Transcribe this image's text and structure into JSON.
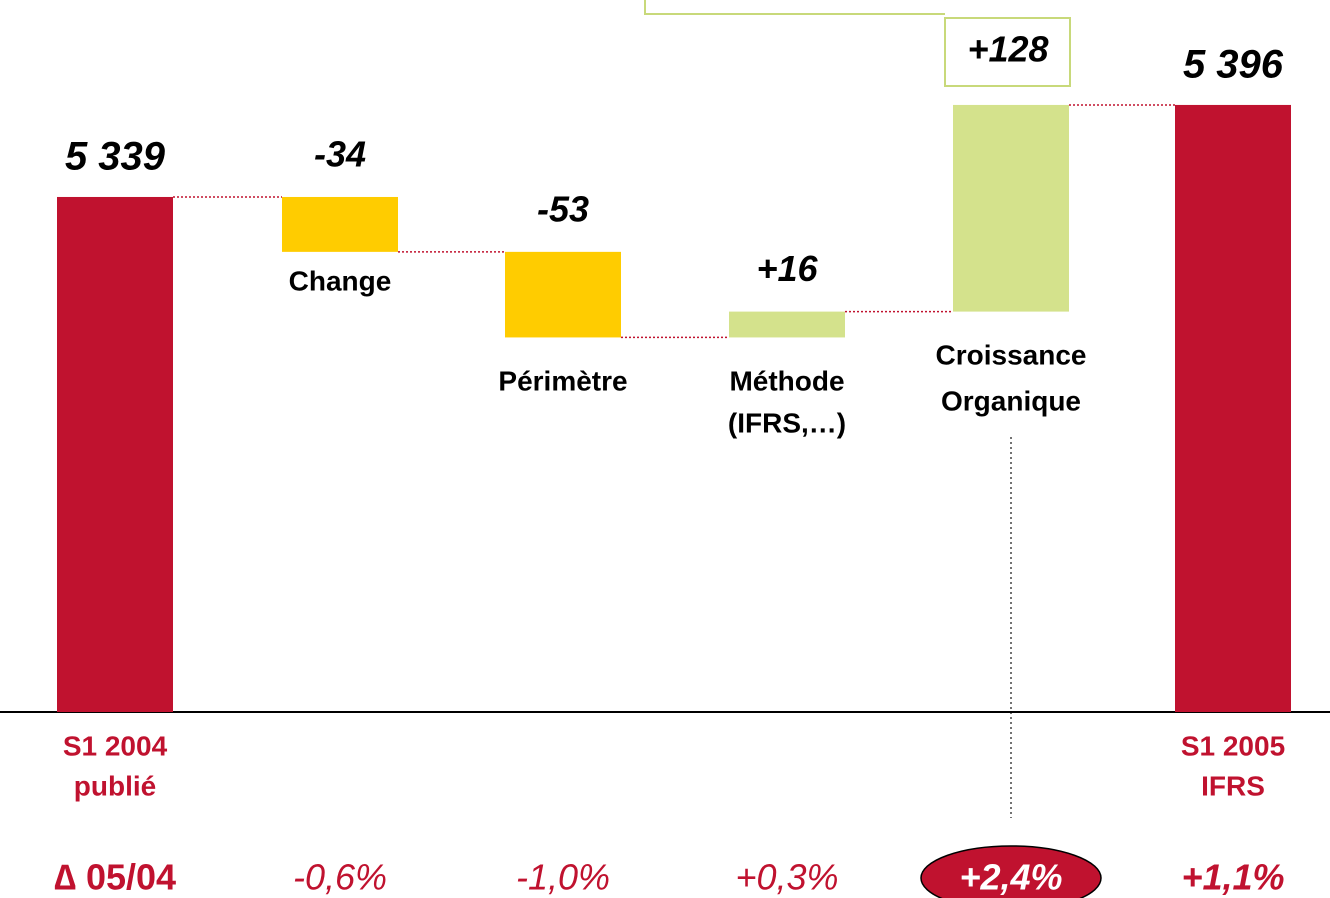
{
  "chart_data": {
    "type": "waterfall",
    "categories": [
      [
        "S1 2004",
        "publié"
      ],
      [
        "Change"
      ],
      [
        "Périmètre"
      ],
      [
        "Méthode",
        "(IFRS,…)"
      ],
      [
        "Croissance",
        "Organique"
      ],
      [
        "S1 2005",
        "IFRS"
      ]
    ],
    "values": [
      5339,
      -34,
      -53,
      16,
      128,
      5396
    ],
    "value_labels": [
      "5 339",
      "-34",
      "-53",
      "+16",
      "+128",
      "5 396"
    ],
    "totals": [
      true,
      false,
      false,
      false,
      false,
      true
    ],
    "colors": [
      "#c0122f",
      "#ffcc00",
      "#ffcc00",
      "#d4e28c",
      "#d4e28c",
      "#c0122f"
    ],
    "ylim": [
      5020,
      5461
    ],
    "growth_title": "∆ 05/04",
    "growth_labels": [
      "-0,6%",
      "-1,0%",
      "+0,3%",
      "+2,4%",
      "+1,1%"
    ]
  }
}
